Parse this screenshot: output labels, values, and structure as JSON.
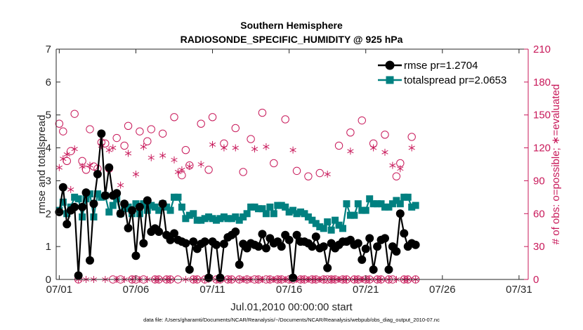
{
  "chart_data": {
    "type": "line",
    "title": "Southern Hemisphere",
    "subtitle": "RADIOSONDE_SPECIFIC_HUMIDITY @ 925 hPa",
    "xlabel": "Jul.01,2010 00:00:00 start",
    "ylabel": "rmse and totalspread",
    "ylabel_right": "# of obs: o=possible; ∗=evaluated",
    "footnote": "data file: /Users/gharamti/Documents/NCAR/Reanalysis/~/Documents/NCAR/Reanalysis/webpub/obs_diag_output_2010-07.nc",
    "xlim": [
      0.8,
      31.6
    ],
    "ylim": [
      0,
      7
    ],
    "ylim_right": [
      0,
      210
    ],
    "x_ticks": [
      1,
      6,
      11,
      16,
      21,
      26,
      31
    ],
    "x_tick_labels": [
      "07/01",
      "07/06",
      "07/11",
      "07/16",
      "07/21",
      "07/26",
      "07/31"
    ],
    "y_ticks": [
      0,
      1,
      2,
      3,
      4,
      5,
      6,
      7
    ],
    "y_ticks_right": [
      0,
      30,
      60,
      90,
      120,
      150,
      180,
      210
    ],
    "x_start": 1.0,
    "x_step": 0.25,
    "legend": {
      "location": "top-right",
      "entries": [
        "rmse pr=1.2704",
        "totalspread pr=2.0653"
      ]
    },
    "colors": {
      "rmse": "#000000",
      "totalspread": "#008080",
      "obs": "#c8195a",
      "axis": "#262626"
    },
    "series": [
      {
        "name": "rmse",
        "axis": "left",
        "values": [
          2.05,
          2.8,
          1.68,
          2.1,
          2.2,
          0.12,
          2.2,
          2.64,
          0.58,
          2.3,
          3.2,
          4.43,
          2.55,
          3.4,
          2.55,
          2.62,
          2.0,
          2.3,
          1.56,
          2.1,
          0.72,
          2.2,
          1.1,
          2.4,
          1.45,
          1.55,
          1.45,
          2.3,
          1.35,
          1.2,
          1.4,
          1.2,
          1.15,
          1.1,
          0.3,
          1.15,
          0.93,
          1.08,
          1.15,
          0.05,
          1.15,
          1.05,
          0.05,
          1.08,
          1.28,
          1.35,
          1.45,
          0.45,
          1.08,
          0.95,
          1.1,
          1.05,
          1.0,
          1.38,
          0.95,
          1.25,
          1.1,
          1.15,
          1.0,
          1.35,
          1.2,
          0.05,
          1.35,
          1.15,
          1.15,
          1.1,
          1.0,
          1.3,
          0.95,
          1.0,
          0.35,
          1.1,
          0.95,
          1.05,
          1.15,
          1.15,
          1.2,
          1.05,
          1.1,
          0.6,
          0.93,
          1.25,
          0.3,
          1.0,
          1.2,
          1.25,
          0.3,
          1.0,
          0.85,
          2.0,
          1.4,
          1.0,
          1.1,
          1.05
        ]
      },
      {
        "name": "totalspread",
        "axis": "left",
        "values": [
          2.1,
          2.35,
          2.0,
          2.2,
          2.5,
          2.45,
          1.9,
          2.45,
          2.6,
          1.9,
          2.6,
          2.5,
          2.55,
          2.05,
          2.25,
          2.45,
          2.0,
          2.15,
          2.2,
          2.0,
          2.3,
          2.0,
          2.3,
          2.1,
          2.25,
          2.2,
          2.1,
          2.3,
          2.2,
          2.1,
          2.5,
          2.5,
          2.2,
          1.85,
          1.95,
          2.0,
          1.8,
          1.8,
          1.85,
          1.9,
          1.85,
          1.8,
          1.85,
          1.9,
          1.85,
          1.85,
          1.9,
          1.8,
          1.9,
          2.0,
          2.2,
          2.2,
          2.15,
          2.15,
          2.0,
          2.2,
          2.0,
          2.25,
          2.25,
          2.2,
          2.05,
          2.1,
          2.0,
          2.05,
          2.0,
          1.9,
          1.8,
          1.7,
          1.6,
          1.55,
          1.75,
          1.5,
          1.8,
          1.65,
          1.55,
          2.3,
          1.95,
          1.95,
          2.3,
          2.1,
          2.1,
          2.45,
          2.3,
          2.3,
          2.3,
          2.2,
          2.2,
          2.3,
          2.4,
          2.3,
          2.5,
          2.5,
          2.2,
          2.25
        ]
      },
      {
        "name": "possible",
        "axis": "right",
        "values": [
          142,
          135,
          108,
          117,
          151,
          0,
          108,
          100,
          137,
          103,
          101,
          125,
          124,
          101,
          0,
          129,
          0,
          122,
          140,
          0,
          0,
          135,
          0,
          126,
          137,
          0,
          0,
          133,
          0,
          0,
          148,
          0,
          95,
          118,
          104,
          0,
          0,
          142,
          0,
          100,
          148,
          0,
          0,
          124,
          0,
          0,
          138,
          0,
          98,
          0,
          128,
          0,
          0,
          152,
          0,
          0,
          106,
          0,
          0,
          146,
          0,
          0,
          99,
          0,
          0,
          94,
          0,
          0,
          97,
          0,
          0,
          0,
          0,
          122,
          0,
          0,
          134,
          0,
          0,
          145,
          0,
          0,
          124,
          0,
          0,
          132,
          0,
          0,
          94,
          106,
          0,
          0,
          130,
          0
        ]
      },
      {
        "name": "evaluated",
        "axis": "right",
        "values": [
          102,
          110,
          114,
          82,
          119,
          0,
          103,
          0,
          104,
          0,
          98,
          122,
          0,
          118,
          120,
          0,
          86,
          0,
          115,
          0,
          96,
          0,
          121,
          0,
          111,
          0,
          0,
          113,
          0,
          0,
          109,
          98,
          100,
          0,
          103,
          0,
          0,
          105,
          0,
          0,
          123,
          0,
          0,
          120,
          0,
          0,
          120,
          0,
          0,
          0,
          0,
          119,
          0,
          0,
          121,
          0,
          0,
          0,
          0,
          0,
          0,
          118,
          0,
          0,
          0,
          0,
          0,
          0,
          0,
          0,
          96,
          0,
          0,
          0,
          0,
          0,
          117,
          0,
          0,
          0,
          0,
          0,
          120,
          0,
          0,
          116,
          0,
          104,
          0,
          101,
          0,
          0,
          120,
          0
        ]
      }
    ]
  }
}
